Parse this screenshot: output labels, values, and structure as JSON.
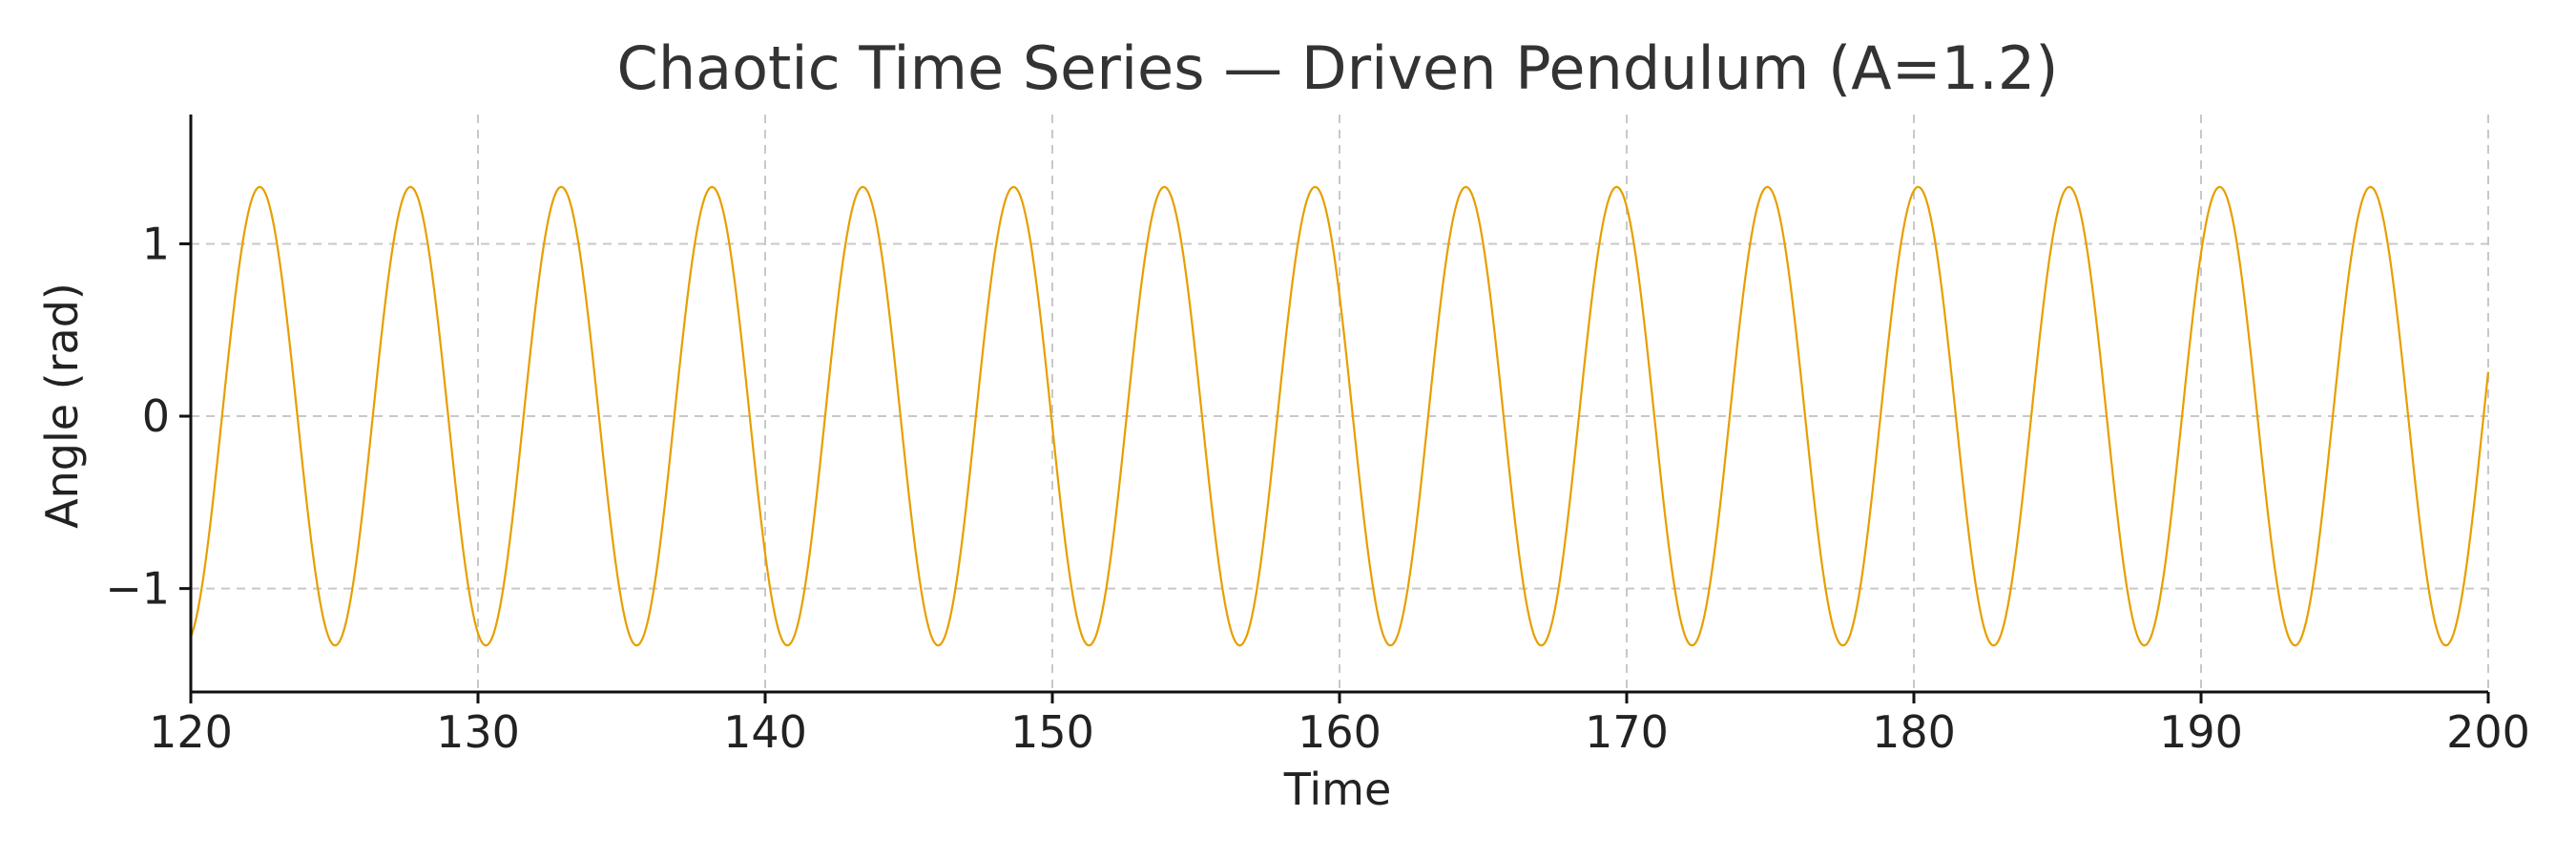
{
  "chart_data": {
    "type": "line",
    "title": "Chaotic Time Series — Driven Pendulum (A=1.2)",
    "xlabel": "Time",
    "ylabel": "Angle (rad)",
    "xlim": [
      120,
      200
    ],
    "ylim": [
      -1.6,
      1.75
    ],
    "x_ticks": [
      120,
      130,
      140,
      150,
      160,
      170,
      180,
      190,
      200
    ],
    "x_tick_labels": [
      "120",
      "130",
      "140",
      "150",
      "160",
      "170",
      "180",
      "190",
      "200"
    ],
    "y_ticks": [
      1,
      0,
      -1
    ],
    "y_tick_labels": [
      "1",
      "0",
      "−1"
    ],
    "grid": true,
    "legend": "none",
    "series": [
      {
        "color": "#E69F00",
        "amplitude": 1.33,
        "period": 5.25,
        "phase_reference_time": 122.4,
        "x_start": 120,
        "x_end": 200,
        "peak_times": [
          122.4,
          127.65,
          132.9,
          138.15,
          143.4,
          148.65,
          153.9,
          159.15,
          164.4,
          169.65,
          174.9,
          180.15,
          185.4,
          190.65,
          195.9
        ],
        "peak_values": [
          1.33,
          1.33,
          1.33,
          1.33,
          1.33,
          1.33,
          1.33,
          1.33,
          1.33,
          1.33,
          1.33,
          1.33,
          1.33,
          1.33,
          1.33
        ],
        "trough_times": [
          125.0,
          130.25,
          135.5,
          140.75,
          146.0,
          151.25,
          156.5,
          161.75,
          167.0,
          172.25,
          177.5,
          182.75,
          188.0,
          193.25,
          198.5
        ],
        "trough_values": [
          -1.33,
          -1.33,
          -1.33,
          -1.33,
          -1.33,
          -1.33,
          -1.33,
          -1.33,
          -1.33,
          -1.33,
          -1.33,
          -1.33,
          -1.33,
          -1.33,
          -1.33
        ],
        "start_value": -1.27,
        "end_value": 0.53
      }
    ]
  }
}
